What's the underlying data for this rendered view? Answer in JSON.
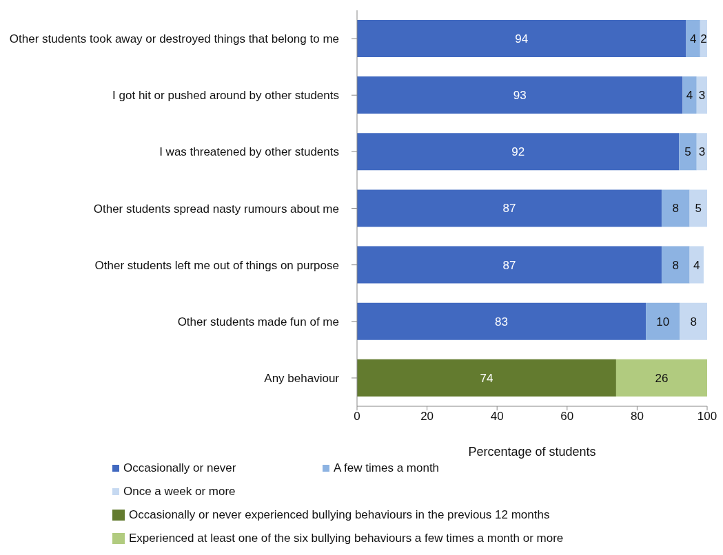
{
  "chart_data": {
    "type": "bar",
    "orientation": "horizontal",
    "stacked": true,
    "grid": false,
    "legend": "bottom",
    "xlabel": "Percentage of students",
    "xlim": [
      0,
      100
    ],
    "xticks": [
      0,
      20,
      40,
      60,
      80,
      100
    ],
    "categories": [
      "Other students took away or destroyed things that belong to me",
      "I got hit or pushed around by other students",
      "I was threatened by other students",
      "Other students spread nasty rumours about me",
      "Other students left me out of things on purpose",
      "Other students made fun of me",
      "Any behaviour"
    ],
    "series": [
      {
        "name": "Occasionally or never",
        "color": "#4169c0",
        "values": [
          94,
          93,
          92,
          87,
          87,
          82.5,
          null
        ],
        "value_labels": [
          "94",
          "93",
          "92",
          "87",
          "87",
          "83",
          null
        ]
      },
      {
        "name": "A few times a month",
        "color": "#8db3e2",
        "values": [
          4,
          4,
          5,
          8,
          8,
          9.7,
          null
        ],
        "value_labels": [
          "4",
          "4",
          "5",
          "8",
          "8",
          "10",
          null
        ]
      },
      {
        "name": "Once a week or more",
        "color": "#c6d9f1",
        "values": [
          2,
          3,
          3,
          5,
          4,
          7.8,
          null
        ],
        "value_labels": [
          "2",
          "3",
          "3",
          "5",
          "4",
          "8",
          null
        ]
      },
      {
        "name": "Occasionally or never experienced bullying behaviours in the previous 12 months",
        "color": "#637b2f",
        "values": [
          null,
          null,
          null,
          null,
          null,
          null,
          74
        ],
        "value_labels": [
          null,
          null,
          null,
          null,
          null,
          null,
          "74"
        ]
      },
      {
        "name": "Experienced at least one of the six bullying behaviours a few times a month or more",
        "color": "#b1cb7f",
        "values": [
          null,
          null,
          null,
          null,
          null,
          null,
          26
        ],
        "value_labels": [
          null,
          null,
          null,
          null,
          null,
          null,
          "26"
        ]
      }
    ]
  }
}
